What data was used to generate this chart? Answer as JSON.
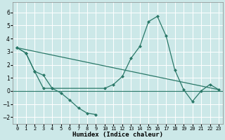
{
  "xlabel": "Humidex (Indice chaleur)",
  "xlim": [
    -0.5,
    23.5
  ],
  "ylim": [
    -2.5,
    6.8
  ],
  "yticks": [
    -2,
    -1,
    0,
    1,
    2,
    3,
    4,
    5,
    6
  ],
  "xticks": [
    0,
    1,
    2,
    3,
    4,
    5,
    6,
    7,
    8,
    9,
    10,
    11,
    12,
    13,
    14,
    15,
    16,
    17,
    18,
    19,
    20,
    21,
    22,
    23
  ],
  "bg_color": "#cce8e8",
  "grid_color": "#ffffff",
  "line_color": "#2a7868",
  "line1_x": [
    0,
    1,
    2,
    3,
    4,
    10,
    11,
    12,
    13,
    14,
    15,
    16,
    17,
    18,
    19,
    20,
    21,
    22,
    23
  ],
  "line1_y": [
    3.3,
    2.9,
    1.5,
    1.2,
    0.2,
    0.2,
    0.5,
    1.1,
    2.5,
    3.4,
    5.3,
    5.7,
    4.2,
    1.6,
    0.1,
    -0.8,
    0.0,
    0.5,
    0.1
  ],
  "line2_x": [
    0,
    1,
    2,
    3,
    4,
    5,
    6,
    7,
    8,
    9
  ],
  "line2_y": [
    3.3,
    2.9,
    1.5,
    0.2,
    0.2,
    -0.15,
    -0.7,
    -1.3,
    -1.7,
    -1.8
  ],
  "line3_x": [
    0,
    23
  ],
  "line3_y": [
    3.3,
    0.1
  ]
}
